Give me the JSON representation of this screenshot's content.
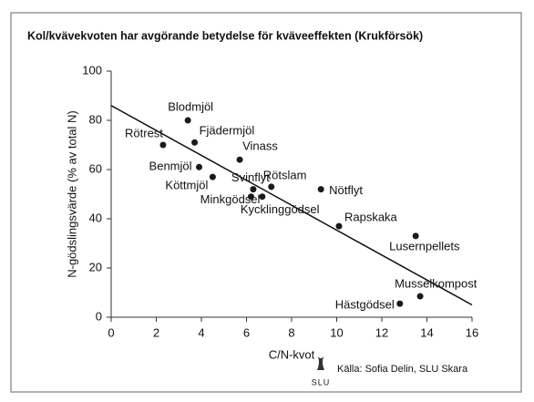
{
  "chart_data": {
    "type": "scatter",
    "title": "Kol/kvävekvoten har avgörande betydelse för kväveeffekten (Krukförsök)",
    "x_label": "C/N-kvot",
    "y_label": "N-gödslingsvärde (% av total N)",
    "source": "Källa: Sofia Delin, SLU Skara",
    "logo": "SLU",
    "point_labels": [
      "Blodmjöl",
      "Rötrest",
      "Fjädermjöl",
      "Vinass",
      "Benmjöl",
      "Köttmjöl",
      "Svinflyt",
      "Rötslam",
      "Minkgödsel",
      "Kycklinggödsel",
      "Nötflyt",
      "Rapskaka",
      "Lusernpellets",
      "Musselkompost",
      "Hästgödsel"
    ],
    "x": [
      3.4,
      2.3,
      3.7,
      5.7,
      3.9,
      4.5,
      6.3,
      7.1,
      6.2,
      6.7,
      9.3,
      10.1,
      13.5,
      13.7,
      12.8
    ],
    "values": [
      80,
      70,
      71,
      64,
      61,
      57,
      52,
      53,
      49,
      49,
      52,
      37,
      33,
      8.5,
      5.5
    ],
    "color": "#1a1a1a",
    "trendline": {
      "x": [
        0,
        16
      ],
      "y": [
        86,
        5
      ]
    },
    "xlim": [
      0,
      16
    ],
    "xticks": [
      0,
      2,
      4,
      6,
      8,
      10,
      12,
      14,
      16
    ],
    "ylim": [
      0,
      100
    ],
    "yticks": [
      0,
      20,
      40,
      60,
      80,
      100
    ]
  }
}
